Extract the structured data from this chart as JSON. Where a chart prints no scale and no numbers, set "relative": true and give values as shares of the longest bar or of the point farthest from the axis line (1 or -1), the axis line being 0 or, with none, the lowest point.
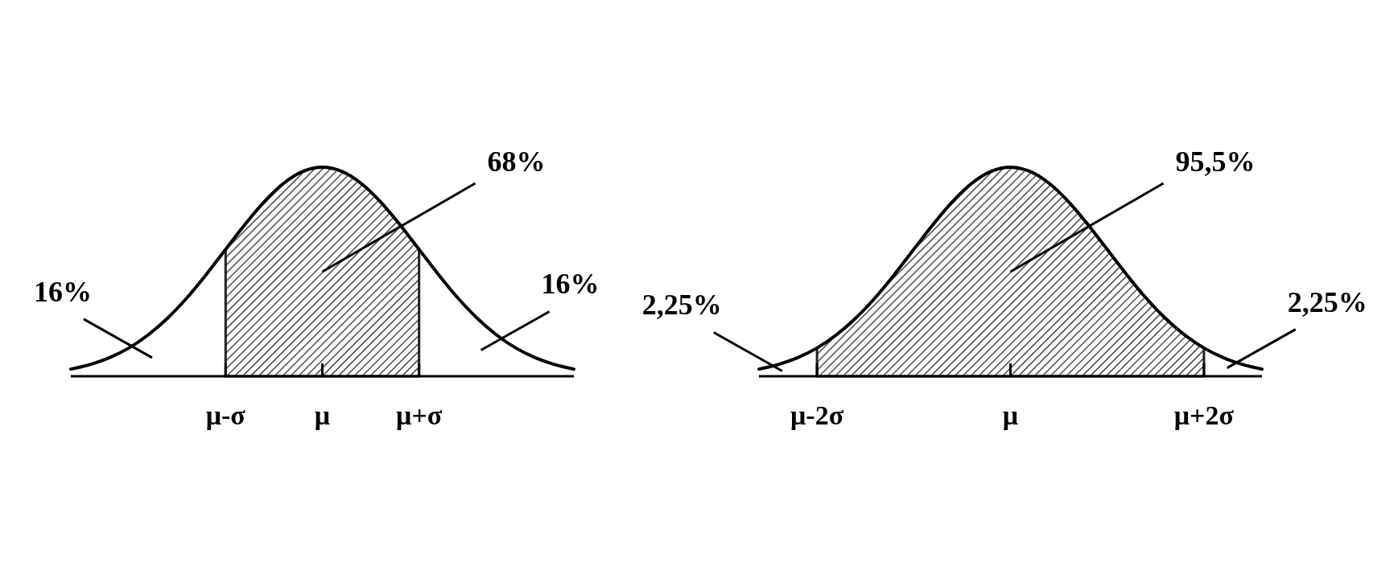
{
  "chart_data": [
    {
      "type": "area",
      "relative": true,
      "tick_labels": "x",
      "categories": [
        null,
        null,
        null,
        null,
        null,
        null,
        null,
        null,
        "μ-σ",
        null,
        null,
        null,
        null,
        "μ",
        null,
        null,
        null,
        null,
        "μ+σ",
        null,
        null,
        null,
        null,
        null,
        null,
        null,
        null
      ],
      "annotations": [
        "16%",
        "68%",
        "16%"
      ],
      "series": [
        {
          "color": "#222222",
          "values": [
            null,
            null,
            null,
            null,
            null,
            null,
            null,
            null,
            0.607,
            0.726,
            0.835,
            0.923,
            0.98,
            1,
            0.98,
            0.923,
            0.835,
            0.726,
            0.607,
            null,
            null,
            null,
            null,
            null,
            null,
            null,
            null
          ]
        },
        {
          "type": "line",
          "color": "#000000",
          "values": [
            0.034,
            0.056,
            0.089,
            0.135,
            0.198,
            0.278,
            0.375,
            0.487,
            0.607,
            0.726,
            0.835,
            0.923,
            0.98,
            1,
            0.98,
            0.923,
            0.835,
            0.726,
            0.607,
            0.487,
            0.375,
            0.278,
            0.198,
            0.135,
            0.089,
            0.056,
            0.034
          ]
        }
      ]
    },
    {
      "type": "area",
      "relative": true,
      "tick_labels": "x",
      "categories": [
        null,
        null,
        null,
        "μ-2σ",
        null,
        null,
        null,
        null,
        null,
        null,
        null,
        null,
        null,
        "μ",
        null,
        null,
        null,
        null,
        null,
        null,
        null,
        null,
        null,
        "μ+2σ",
        null,
        null,
        null
      ],
      "annotations": [
        "2,25%",
        "95,5%",
        "2,25%"
      ],
      "series": [
        {
          "color": "#222222",
          "values": [
            null,
            null,
            null,
            0.135,
            0.198,
            0.278,
            0.375,
            0.487,
            0.607,
            0.726,
            0.835,
            0.923,
            0.98,
            1,
            0.98,
            0.923,
            0.835,
            0.726,
            0.607,
            0.487,
            0.375,
            0.278,
            0.198,
            0.135,
            null,
            null,
            null
          ]
        },
        {
          "type": "line",
          "color": "#000000",
          "values": [
            0.034,
            0.056,
            0.089,
            0.135,
            0.198,
            0.278,
            0.375,
            0.487,
            0.607,
            0.726,
            0.835,
            0.923,
            0.98,
            1,
            0.98,
            0.923,
            0.835,
            0.726,
            0.607,
            0.487,
            0.375,
            0.278,
            0.198,
            0.135,
            0.089,
            0.056,
            0.034
          ]
        }
      ]
    }
  ]
}
